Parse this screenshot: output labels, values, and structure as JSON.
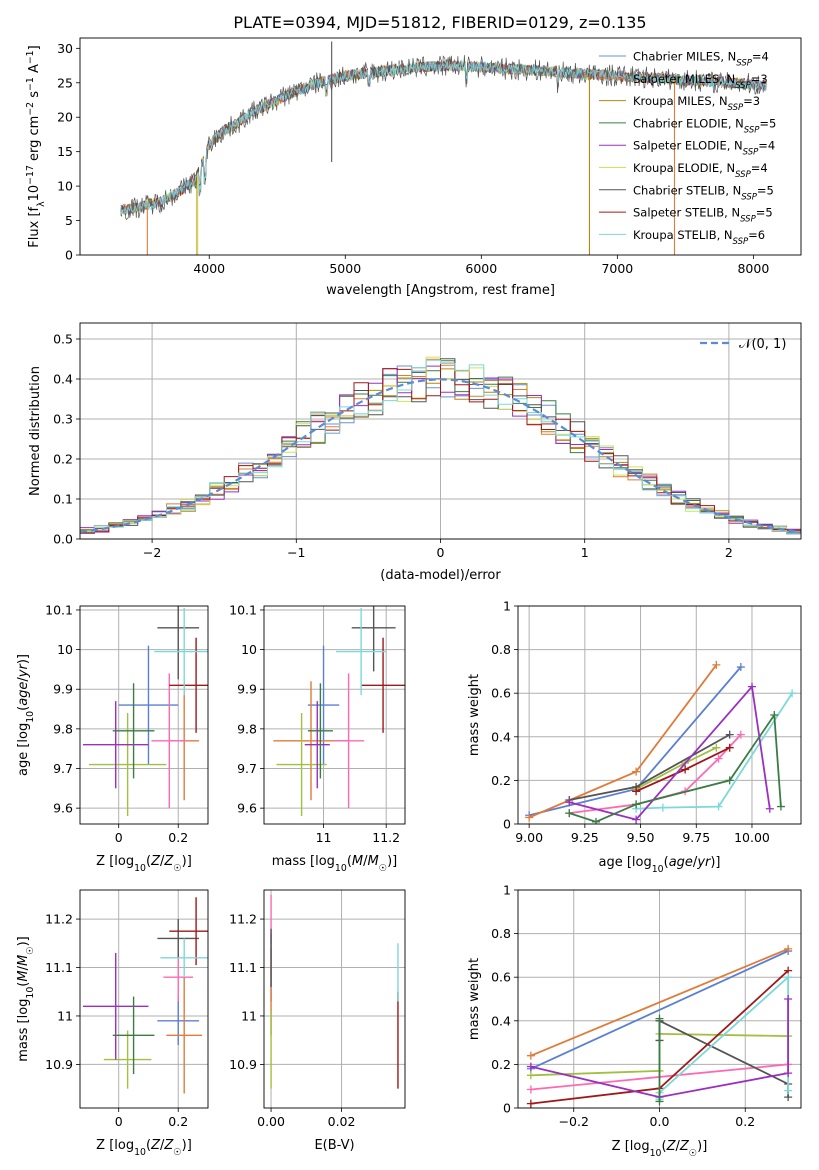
{
  "figure_title": "PLATE=0394, MJD=51812, FIBERID=0129, z=0.135",
  "colors": {
    "models": [
      "#6b8fd6",
      "#e07b39",
      "#b8860b",
      "#3a7d44",
      "#9b30c0",
      "#d4e157",
      "#555555",
      "#a01818",
      "#7dd8d8"
    ],
    "panel3": [
      "#5b7fd4",
      "#e07b39",
      "#a0c040",
      "#ff69b4",
      "#555555",
      "#a01818",
      "#7dd8d8",
      "#9b30c0",
      "#3a7d44"
    ],
    "normal_curve": "#5b8bd6",
    "grid": "#b0b0b0"
  },
  "chart_data": [
    {
      "id": "spectrum",
      "type": "line",
      "xlabel": "wavelength [Angstrom, rest frame]",
      "ylabel": "Flux [f_λ 10^-17 erg cm^-2 s^-1 A^-1]",
      "xlim": [
        3050,
        8350
      ],
      "ylim": [
        0,
        31.5
      ],
      "xticks": [
        4000,
        5000,
        6000,
        7000,
        8000
      ],
      "yticks": [
        0,
        5,
        10,
        15,
        20,
        25,
        30
      ],
      "continuum": {
        "x": [
          3350,
          3500,
          3650,
          3800,
          3900,
          3950,
          4000,
          4100,
          4200,
          4300,
          4400,
          4500,
          4600,
          4800,
          5000,
          5200,
          5400,
          5600,
          5800,
          6000,
          6200,
          6400,
          6600,
          6800,
          7000,
          7200,
          7400,
          7600,
          7800,
          8000,
          8100
        ],
        "y": [
          6.5,
          7.0,
          7.8,
          9.5,
          11.0,
          13.5,
          16.0,
          18.0,
          19.0,
          20.5,
          21.5,
          22.5,
          23.5,
          25.0,
          26.0,
          26.5,
          27.0,
          27.3,
          27.5,
          27.3,
          27.0,
          26.8,
          26.5,
          26.2,
          26.0,
          25.8,
          25.5,
          25.3,
          25.0,
          24.8,
          24.5
        ]
      },
      "legend": [
        {
          "label": "Chabrier MILES, N",
          "sub": "SSP",
          "n": "=4"
        },
        {
          "label": "Salpeter MILES, N",
          "sub": "SSP",
          "n": "=3"
        },
        {
          "label": "Kroupa MILES, N",
          "sub": "SSP",
          "n": "=3"
        },
        {
          "label": "Chabrier ELODIE, N",
          "sub": "SSP",
          "n": "=5"
        },
        {
          "label": "Salpeter ELODIE, N",
          "sub": "SSP",
          "n": "=4"
        },
        {
          "label": "Kroupa ELODIE, N",
          "sub": "SSP",
          "n": "=4"
        },
        {
          "label": "Chabrier STELIB, N",
          "sub": "SSP",
          "n": "=5"
        },
        {
          "label": "Salpeter STELIB, N",
          "sub": "SSP",
          "n": "=5"
        },
        {
          "label": "Kroupa STELIB, N",
          "sub": "SSP",
          "n": "=6"
        }
      ],
      "legend_placement": "upper-right",
      "grid": false
    },
    {
      "id": "residuals",
      "type": "histogram",
      "xlabel": "(data-model)/error",
      "ylabel": "Normed distribution",
      "xlim": [
        -2.5,
        2.5
      ],
      "ylim": [
        0,
        0.54
      ],
      "xticks": [
        -2,
        -1,
        0,
        1,
        2
      ],
      "xticklabels": [
        "−2",
        "−1",
        "0",
        "1",
        "2"
      ],
      "yticks": [
        0.0,
        0.1,
        0.2,
        0.3,
        0.4,
        0.5
      ],
      "yticklabels": [
        "0.0",
        "0.1",
        "0.2",
        "0.3",
        "0.4",
        "0.5"
      ],
      "legend": "𝒩(0, 1)",
      "legend_placement": "upper-right",
      "grid": true,
      "bin_width": 0.1
    },
    {
      "id": "age_vs_Z",
      "type": "errorbar",
      "xlabel": "Z [log10(Z/Z☉)]",
      "ylabel": "age [log10(age/yr)]",
      "xlim": [
        -0.13,
        0.3
      ],
      "ylim": [
        9.56,
        10.11
      ],
      "xticks": [
        0.0,
        0.2
      ],
      "yticks": [
        9.6,
        9.7,
        9.8,
        9.9,
        10.0,
        10.1
      ],
      "points": [
        {
          "x": 0.1,
          "y": 9.86,
          "xerr": 0.1,
          "yerr": 0.15
        },
        {
          "x": 0.22,
          "y": 9.77,
          "xerr": 0.05,
          "yerr": 0.15
        },
        {
          "x": 0.03,
          "y": 9.71,
          "xerr": 0.13,
          "yerr": 0.13
        },
        {
          "x": 0.17,
          "y": 9.77,
          "xerr": 0.06,
          "yerr": 0.17
        },
        {
          "x": 0.2,
          "y": 10.055,
          "xerr": 0.07,
          "yerr": 0.13
        },
        {
          "x": 0.26,
          "y": 9.91,
          "xerr": 0.09,
          "yerr": 0.12
        },
        {
          "x": 0.22,
          "y": 9.995,
          "xerr": 0.1,
          "yerr": 0.11
        },
        {
          "x": -0.01,
          "y": 9.76,
          "xerr": 0.11,
          "yerr": 0.11
        },
        {
          "x": 0.05,
          "y": 9.795,
          "xerr": 0.07,
          "yerr": 0.12
        }
      ]
    },
    {
      "id": "age_vs_mass",
      "type": "errorbar",
      "xlabel": "mass [log10(M/M☉)]",
      "ylabel": "",
      "xlim": [
        10.81,
        11.26
      ],
      "ylim": [
        9.56,
        10.11
      ],
      "xticks": [
        11.0,
        11.2
      ],
      "yticks": [
        9.6,
        9.7,
        9.8,
        9.9,
        10.0,
        10.1
      ],
      "points": [
        {
          "x": 11.0,
          "y": 9.86,
          "xerr": 0.05,
          "yerr": 0.15
        },
        {
          "x": 10.96,
          "y": 9.77,
          "xerr": 0.12,
          "yerr": 0.15
        },
        {
          "x": 10.93,
          "y": 9.71,
          "xerr": 0.08,
          "yerr": 0.13
        },
        {
          "x": 11.08,
          "y": 9.77,
          "xerr": 0.05,
          "yerr": 0.17
        },
        {
          "x": 11.16,
          "y": 10.055,
          "xerr": 0.07,
          "yerr": 0.11
        },
        {
          "x": 11.19,
          "y": 9.91,
          "xerr": 0.07,
          "yerr": 0.12
        },
        {
          "x": 11.12,
          "y": 9.995,
          "xerr": 0.08,
          "yerr": 0.11
        },
        {
          "x": 10.98,
          "y": 9.76,
          "xerr": 0.04,
          "yerr": 0.11
        },
        {
          "x": 10.99,
          "y": 9.795,
          "xerr": 0.04,
          "yerr": 0.12
        }
      ]
    },
    {
      "id": "weights_vs_age",
      "type": "line",
      "xlabel": "age [log10(age/yr)]",
      "ylabel": "mass weight",
      "xlim": [
        8.95,
        10.22
      ],
      "ylim": [
        0.0,
        1.0
      ],
      "xticks": [
        9.0,
        9.25,
        9.5,
        9.75,
        10.0
      ],
      "xticklabels": [
        "9.00",
        "9.25",
        "9.50",
        "9.75",
        "10.00"
      ],
      "yticks": [
        0.0,
        0.2,
        0.4,
        0.6,
        0.8,
        1.0
      ],
      "grid": true,
      "series": [
        {
          "x": [
            9.0,
            9.48,
            9.95
          ],
          "y": [
            0.04,
            0.16,
            0.72
          ]
        },
        {
          "x": [
            9.0,
            9.48,
            9.84
          ],
          "y": [
            0.03,
            0.24,
            0.73
          ]
        },
        {
          "x": [
            9.48,
            9.7,
            9.84
          ],
          "y": [
            0.16,
            0.28,
            0.35
          ]
        },
        {
          "x": [
            9.18,
            9.48,
            9.7,
            9.85,
            9.95
          ],
          "y": [
            0.05,
            0.09,
            0.15,
            0.3,
            0.41
          ]
        },
        {
          "x": [
            9.18,
            9.48,
            9.9
          ],
          "y": [
            0.11,
            0.17,
            0.41
          ]
        },
        {
          "x": [
            9.48,
            9.7,
            9.9
          ],
          "y": [
            0.15,
            0.25,
            0.35
          ]
        },
        {
          "x": [
            9.48,
            9.6,
            9.85,
            10.18
          ],
          "y": [
            0.07,
            0.075,
            0.08,
            0.6
          ]
        },
        {
          "x": [
            9.18,
            9.48,
            10.0,
            10.08
          ],
          "y": [
            0.1,
            0.02,
            0.63,
            0.07
          ]
        },
        {
          "x": [
            9.18,
            9.3,
            9.48,
            9.9,
            10.1,
            10.13
          ],
          "y": [
            0.05,
            0.01,
            0.09,
            0.2,
            0.5,
            0.08
          ]
        }
      ]
    },
    {
      "id": "mass_vs_Z",
      "type": "errorbar",
      "xlabel": "Z [log10(Z/Z☉)]",
      "ylabel": "mass [log10(M/M☉)]",
      "xlim": [
        -0.13,
        0.3
      ],
      "ylim": [
        10.81,
        11.26
      ],
      "xticks": [
        0.0,
        0.2
      ],
      "yticks": [
        10.9,
        11.0,
        11.1,
        11.2
      ],
      "points": [
        {
          "x": 0.2,
          "y": 10.99,
          "xerr": 0.07,
          "yerr": 0.05
        },
        {
          "x": 0.22,
          "y": 10.96,
          "xerr": 0.06,
          "yerr": 0.12
        },
        {
          "x": 0.03,
          "y": 10.91,
          "xerr": 0.08,
          "yerr": 0.06
        },
        {
          "x": 0.2,
          "y": 11.08,
          "xerr": 0.05,
          "yerr": 0.05
        },
        {
          "x": 0.2,
          "y": 11.16,
          "xerr": 0.07,
          "yerr": 0.04
        },
        {
          "x": 0.26,
          "y": 11.175,
          "xerr": 0.09,
          "yerr": 0.07
        },
        {
          "x": 0.22,
          "y": 11.12,
          "xerr": 0.08,
          "yerr": 0.04
        },
        {
          "x": -0.01,
          "y": 11.02,
          "xerr": 0.11,
          "yerr": 0.11
        },
        {
          "x": 0.05,
          "y": 10.96,
          "xerr": 0.07,
          "yerr": 0.08
        }
      ]
    },
    {
      "id": "mass_vs_ebv",
      "type": "errorbar",
      "xlabel": "E(B-V)",
      "ylabel": "",
      "xlim": [
        -0.002,
        0.038
      ],
      "ylim": [
        10.81,
        11.26
      ],
      "xticks": [
        0.0,
        0.02
      ],
      "xticklabels": [
        "0.00",
        "0.02"
      ],
      "yticks": [
        10.9,
        11.0,
        11.1,
        11.2
      ],
      "points": [
        {
          "x": 0.0,
          "y": 11.1,
          "xerr": 0,
          "yerr": 0.07
        },
        {
          "x": 0.0,
          "y": 11.05,
          "xerr": 0,
          "yerr": 0.09
        },
        {
          "x": 0.0,
          "y": 10.93,
          "xerr": 0,
          "yerr": 0.08
        },
        {
          "x": 0.0,
          "y": 11.2,
          "xerr": 0,
          "yerr": 0.05
        },
        {
          "x": 0.0,
          "y": 11.12,
          "xerr": 0,
          "yerr": 0.06
        },
        {
          "x": 0.036,
          "y": 10.95,
          "xerr": 0,
          "yerr": 0.1
        },
        {
          "x": 0.036,
          "y": 11.09,
          "xerr": 0,
          "yerr": 0.06
        }
      ]
    },
    {
      "id": "weights_vs_Z",
      "type": "line",
      "xlabel": "Z [log10(Z/Z☉)]",
      "ylabel": "mass weight",
      "xlim": [
        -0.33,
        0.33
      ],
      "ylim": [
        0.0,
        1.0
      ],
      "xticks": [
        -0.2,
        0.0,
        0.2
      ],
      "xticklabels": [
        "−0.2",
        "0.0",
        "0.2"
      ],
      "yticks": [
        0.0,
        0.2,
        0.4,
        0.6,
        0.8,
        1.0
      ],
      "grid": true,
      "series": [
        {
          "x": [
            -0.3,
            0.3
          ],
          "y": [
            0.18,
            0.72
          ]
        },
        {
          "x": [
            -0.3,
            0.3
          ],
          "y": [
            0.24,
            0.73
          ]
        },
        {
          "x": [
            -0.3,
            0.0,
            0.0,
            0.3
          ],
          "y": [
            0.15,
            0.17,
            0.34,
            0.33
          ]
        },
        {
          "x": [
            -0.3,
            0.3
          ],
          "y": [
            0.085,
            0.2
          ]
        },
        {
          "x": [
            0.0,
            0.0,
            0.3,
            0.3
          ],
          "y": [
            0.31,
            0.4,
            0.11,
            0.05
          ]
        },
        {
          "x": [
            -0.3,
            0.0,
            0.3
          ],
          "y": [
            0.02,
            0.09,
            0.63
          ]
        },
        {
          "x": [
            0.0,
            0.0,
            0.3,
            0.3
          ],
          "y": [
            0.04,
            0.07,
            0.6,
            0.08
          ]
        },
        {
          "x": [
            -0.3,
            0.0,
            0.3,
            0.3
          ],
          "y": [
            0.19,
            0.05,
            0.16,
            0.5
          ]
        },
        {
          "x": [
            0.0,
            0.0
          ],
          "y": [
            0.03,
            0.41
          ]
        }
      ]
    }
  ]
}
